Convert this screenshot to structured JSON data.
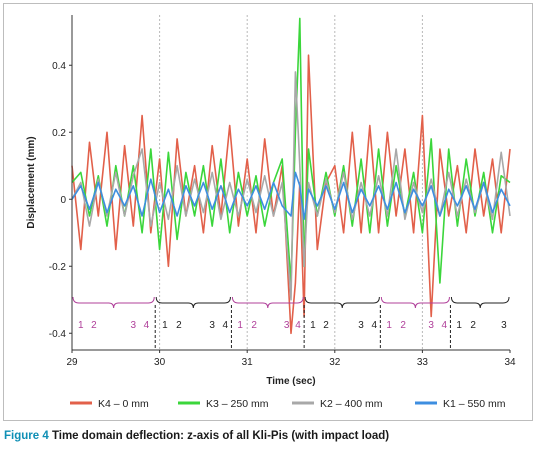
{
  "caption": {
    "label": "Figure 4",
    "text": "Time domain deflection: z-axis of all Kli-Pis (with impact load)"
  },
  "chart_data": {
    "type": "line",
    "title": "",
    "xlabel": "Time (sec)",
    "ylabel": "Displacement (mm)",
    "xlim": [
      29,
      34
    ],
    "ylim": [
      -0.45,
      0.55
    ],
    "x_ticks": [
      29,
      30,
      31,
      32,
      33,
      34
    ],
    "y_ticks": [
      -0.4,
      -0.2,
      0,
      0.2,
      0.4
    ],
    "y_tick_labels": [
      "-0.4",
      "-0.2",
      "0",
      "0.2",
      "0.4"
    ],
    "grid": "vertical dotted",
    "legend_position": "bottom",
    "series": [
      {
        "name": "K4 – 0 mm",
        "color": "#e2604a",
        "x": [
          29.0,
          29.1,
          29.2,
          29.3,
          29.4,
          29.5,
          29.6,
          29.7,
          29.8,
          29.9,
          30.0,
          30.1,
          30.2,
          30.3,
          30.4,
          30.5,
          30.6,
          30.7,
          30.8,
          30.9,
          31.0,
          31.1,
          31.2,
          31.3,
          31.4,
          31.5,
          31.55,
          31.6,
          31.65,
          31.7,
          31.8,
          31.9,
          32.0,
          32.1,
          32.2,
          32.3,
          32.4,
          32.5,
          32.6,
          32.7,
          32.8,
          32.9,
          33.0,
          33.1,
          33.2,
          33.3,
          33.4,
          33.5,
          33.6,
          33.7,
          33.8,
          33.9,
          34.0
        ],
        "y": [
          0.1,
          -0.15,
          0.17,
          -0.05,
          0.2,
          -0.15,
          0.16,
          -0.08,
          0.25,
          -0.1,
          0.12,
          -0.2,
          0.18,
          -0.05,
          0.1,
          -0.1,
          0.16,
          -0.05,
          0.22,
          -0.08,
          0.12,
          -0.1,
          0.18,
          -0.05,
          0.1,
          -0.4,
          -0.25,
          0.05,
          -0.35,
          0.43,
          -0.15,
          0.05,
          0.1,
          -0.1,
          0.2,
          -0.1,
          0.22,
          -0.1,
          0.2,
          -0.05,
          0.15,
          -0.1,
          0.25,
          -0.35,
          0.15,
          -0.05,
          0.1,
          -0.1,
          0.15,
          -0.05,
          0.12,
          -0.1,
          0.15
        ]
      },
      {
        "name": "K3 – 250 mm",
        "color": "#3bd63b",
        "x": [
          29.0,
          29.1,
          29.2,
          29.3,
          29.4,
          29.5,
          29.6,
          29.7,
          29.8,
          29.9,
          30.0,
          30.1,
          30.2,
          30.3,
          30.4,
          30.5,
          30.6,
          30.7,
          30.8,
          30.9,
          31.0,
          31.1,
          31.2,
          31.3,
          31.4,
          31.5,
          31.55,
          31.6,
          31.65,
          31.7,
          31.8,
          31.9,
          32.0,
          32.1,
          32.2,
          32.3,
          32.4,
          32.5,
          32.6,
          32.7,
          32.8,
          32.9,
          33.0,
          33.1,
          33.2,
          33.3,
          33.4,
          33.5,
          33.6,
          33.7,
          33.8,
          33.9,
          34.0
        ],
        "y": [
          0.05,
          0.08,
          -0.05,
          0.07,
          -0.08,
          0.1,
          -0.05,
          0.1,
          -0.1,
          0.15,
          -0.15,
          0.14,
          -0.12,
          0.08,
          -0.05,
          0.1,
          -0.08,
          0.12,
          -0.1,
          0.08,
          -0.05,
          0.07,
          -0.08,
          0.05,
          0.12,
          -0.25,
          0.2,
          0.54,
          -0.2,
          0.15,
          -0.05,
          0.08,
          -0.05,
          0.1,
          -0.08,
          0.12,
          -0.1,
          0.15,
          -0.08,
          0.1,
          -0.05,
          0.08,
          -0.1,
          0.18,
          -0.25,
          0.15,
          -0.08,
          0.12,
          -0.05,
          0.08,
          -0.1,
          0.07,
          0.05
        ]
      },
      {
        "name": "K2 – 400 mm",
        "color": "#a8a8a8",
        "x": [
          29.0,
          29.1,
          29.2,
          29.3,
          29.4,
          29.5,
          29.6,
          29.7,
          29.8,
          29.9,
          30.0,
          30.1,
          30.2,
          30.3,
          30.4,
          30.5,
          30.6,
          30.7,
          30.8,
          30.9,
          31.0,
          31.1,
          31.2,
          31.3,
          31.4,
          31.5,
          31.55,
          31.6,
          31.65,
          31.7,
          31.8,
          31.9,
          32.0,
          32.1,
          32.2,
          32.3,
          32.4,
          32.5,
          32.6,
          32.7,
          32.8,
          32.9,
          33.0,
          33.1,
          33.2,
          33.3,
          33.4,
          33.5,
          33.6,
          33.7,
          33.8,
          33.9,
          34.0
        ],
        "y": [
          0.0,
          0.05,
          -0.08,
          0.06,
          -0.05,
          0.08,
          -0.05,
          0.07,
          0.15,
          -0.08,
          0.05,
          -0.06,
          0.1,
          -0.05,
          0.06,
          -0.04,
          0.08,
          -0.06,
          0.05,
          -0.05,
          0.06,
          -0.04,
          0.07,
          -0.05,
          0.05,
          -0.3,
          0.38,
          0.1,
          -0.2,
          0.05,
          -0.05,
          0.06,
          -0.04,
          0.08,
          -0.06,
          0.05,
          -0.05,
          0.07,
          -0.05,
          0.15,
          -0.06,
          0.05,
          -0.04,
          0.06,
          -0.05,
          0.08,
          -0.05,
          0.06,
          -0.04,
          0.05,
          -0.06,
          0.14,
          -0.05
        ]
      },
      {
        "name": "K1 – 550 mm",
        "color": "#3d8ee0",
        "x": [
          29.0,
          29.1,
          29.2,
          29.3,
          29.4,
          29.5,
          29.6,
          29.7,
          29.8,
          29.9,
          30.0,
          30.1,
          30.2,
          30.3,
          30.4,
          30.5,
          30.6,
          30.7,
          30.8,
          30.9,
          31.0,
          31.1,
          31.2,
          31.3,
          31.4,
          31.5,
          31.55,
          31.6,
          31.65,
          31.7,
          31.8,
          31.9,
          32.0,
          32.1,
          32.2,
          32.3,
          32.4,
          32.5,
          32.6,
          32.7,
          32.8,
          32.9,
          33.0,
          33.1,
          33.2,
          33.3,
          33.4,
          33.5,
          33.6,
          33.7,
          33.8,
          33.9,
          34.0
        ],
        "y": [
          0.0,
          0.04,
          -0.03,
          0.05,
          -0.04,
          0.03,
          -0.02,
          0.04,
          -0.05,
          0.06,
          -0.04,
          0.03,
          -0.05,
          0.04,
          -0.02,
          0.05,
          -0.03,
          0.04,
          -0.04,
          0.03,
          -0.02,
          0.04,
          -0.03,
          0.05,
          -0.02,
          -0.05,
          0.08,
          0.04,
          -0.06,
          0.03,
          -0.02,
          0.04,
          -0.03,
          0.05,
          -0.04,
          0.03,
          -0.02,
          0.04,
          -0.03,
          0.05,
          -0.04,
          0.03,
          -0.02,
          0.04,
          -0.05,
          0.03,
          -0.02,
          0.04,
          -0.03,
          0.05,
          -0.04,
          0.03,
          -0.02
        ]
      }
    ],
    "annotations": {
      "dashed_lines_x": [
        29.95,
        30.82,
        31.65,
        32.52,
        33.32
      ],
      "segments": [
        {
          "from": 29.0,
          "to": 29.95,
          "color": "#b0409a",
          "labels": [
            {
              "x": 29.1,
              "text": "1"
            },
            {
              "x": 29.25,
              "text": "2"
            },
            {
              "x": 29.7,
              "text": "3"
            },
            {
              "x": 29.85,
              "text": "4"
            }
          ]
        },
        {
          "from": 29.95,
          "to": 30.82,
          "color": "#222222",
          "labels": [
            {
              "x": 30.06,
              "text": "1"
            },
            {
              "x": 30.22,
              "text": "2"
            },
            {
              "x": 30.6,
              "text": "3"
            },
            {
              "x": 30.75,
              "text": "4"
            }
          ]
        },
        {
          "from": 30.82,
          "to": 31.65,
          "color": "#b0409a",
          "labels": [
            {
              "x": 30.92,
              "text": "1"
            },
            {
              "x": 31.08,
              "text": "2"
            },
            {
              "x": 31.45,
              "text": "3"
            },
            {
              "x": 31.58,
              "text": "4"
            }
          ]
        },
        {
          "from": 31.65,
          "to": 32.52,
          "color": "#222222",
          "labels": [
            {
              "x": 31.75,
              "text": "1"
            },
            {
              "x": 31.9,
              "text": "2"
            },
            {
              "x": 32.3,
              "text": "3"
            },
            {
              "x": 32.45,
              "text": "4"
            }
          ]
        },
        {
          "from": 32.52,
          "to": 33.32,
          "color": "#b0409a",
          "labels": [
            {
              "x": 32.62,
              "text": "1"
            },
            {
              "x": 32.78,
              "text": "2"
            },
            {
              "x": 33.1,
              "text": "3"
            },
            {
              "x": 33.25,
              "text": "4"
            }
          ]
        },
        {
          "from": 33.32,
          "to": 34.0,
          "color": "#222222",
          "labels": [
            {
              "x": 33.42,
              "text": "1"
            },
            {
              "x": 33.58,
              "text": "2"
            },
            {
              "x": 33.93,
              "text": "3"
            }
          ]
        }
      ]
    }
  }
}
